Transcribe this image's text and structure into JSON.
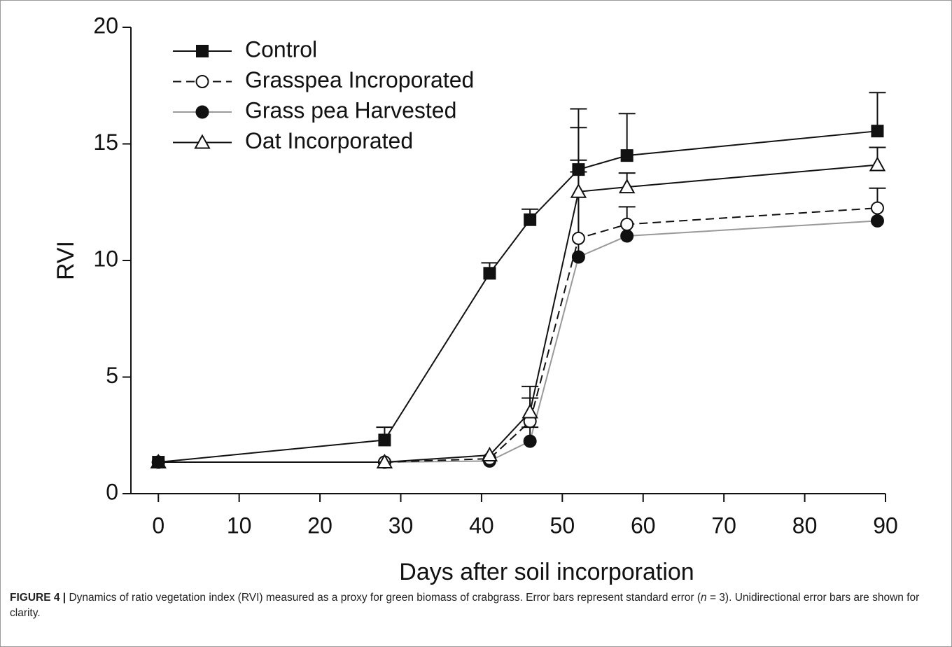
{
  "chart_data": {
    "type": "line",
    "x_label": "Days after soil incorporation",
    "y_label": "RVI",
    "xlim": [
      -3.4,
      90
    ],
    "ylim": [
      0,
      20
    ],
    "xticks": [
      0,
      10,
      20,
      30,
      40,
      50,
      60,
      70,
      80,
      90
    ],
    "yticks": [
      0,
      5,
      10,
      15,
      20
    ],
    "x": [
      0,
      28,
      41,
      46,
      52,
      58,
      89
    ],
    "error_direction": "up",
    "series": [
      {
        "name": "Control",
        "color": "#111111",
        "dash": "solid",
        "marker": "square",
        "marker_fill": "#111111",
        "values": [
          1.35,
          2.3,
          9.45,
          11.75,
          13.9,
          14.5,
          15.55
        ],
        "errors": [
          null,
          0.55,
          0.45,
          0.45,
          2.6,
          1.8,
          1.65
        ]
      },
      {
        "name": "Grasspea Incroporated",
        "color": "#111111",
        "dash": "dashed",
        "marker": "circle",
        "marker_fill": "#ffffff",
        "values": [
          1.35,
          1.35,
          1.5,
          3.1,
          10.95,
          11.55,
          12.25
        ],
        "errors": [
          null,
          null,
          null,
          1.0,
          3.35,
          0.75,
          0.85
        ]
      },
      {
        "name": "Grass pea Harvested",
        "color": "#999999",
        "dash": "solid",
        "marker": "circle",
        "marker_fill": "#111111",
        "values": [
          1.35,
          1.35,
          1.4,
          2.25,
          10.15,
          11.05,
          11.7
        ],
        "errors": [
          null,
          null,
          null,
          0.6,
          3.65,
          null,
          null
        ]
      },
      {
        "name": "Oat Incorporated",
        "color": "#111111",
        "dash": "solid",
        "marker": "triangle",
        "marker_fill": "#ffffff",
        "values": [
          1.35,
          1.35,
          1.65,
          3.5,
          12.95,
          13.15,
          14.1
        ],
        "errors": [
          null,
          null,
          null,
          1.1,
          2.75,
          0.6,
          0.75
        ]
      }
    ],
    "legend": "top-left",
    "caption": {
      "label": "FIGURE 4 |",
      "text_before": "Dynamics of ratio vegetation index (RVI) measured as a proxy for green biomass of crabgrass. Error bars represent standard error (",
      "italic": "n",
      "text_after": " = 3). Unidirectional error bars are shown for clarity."
    }
  }
}
